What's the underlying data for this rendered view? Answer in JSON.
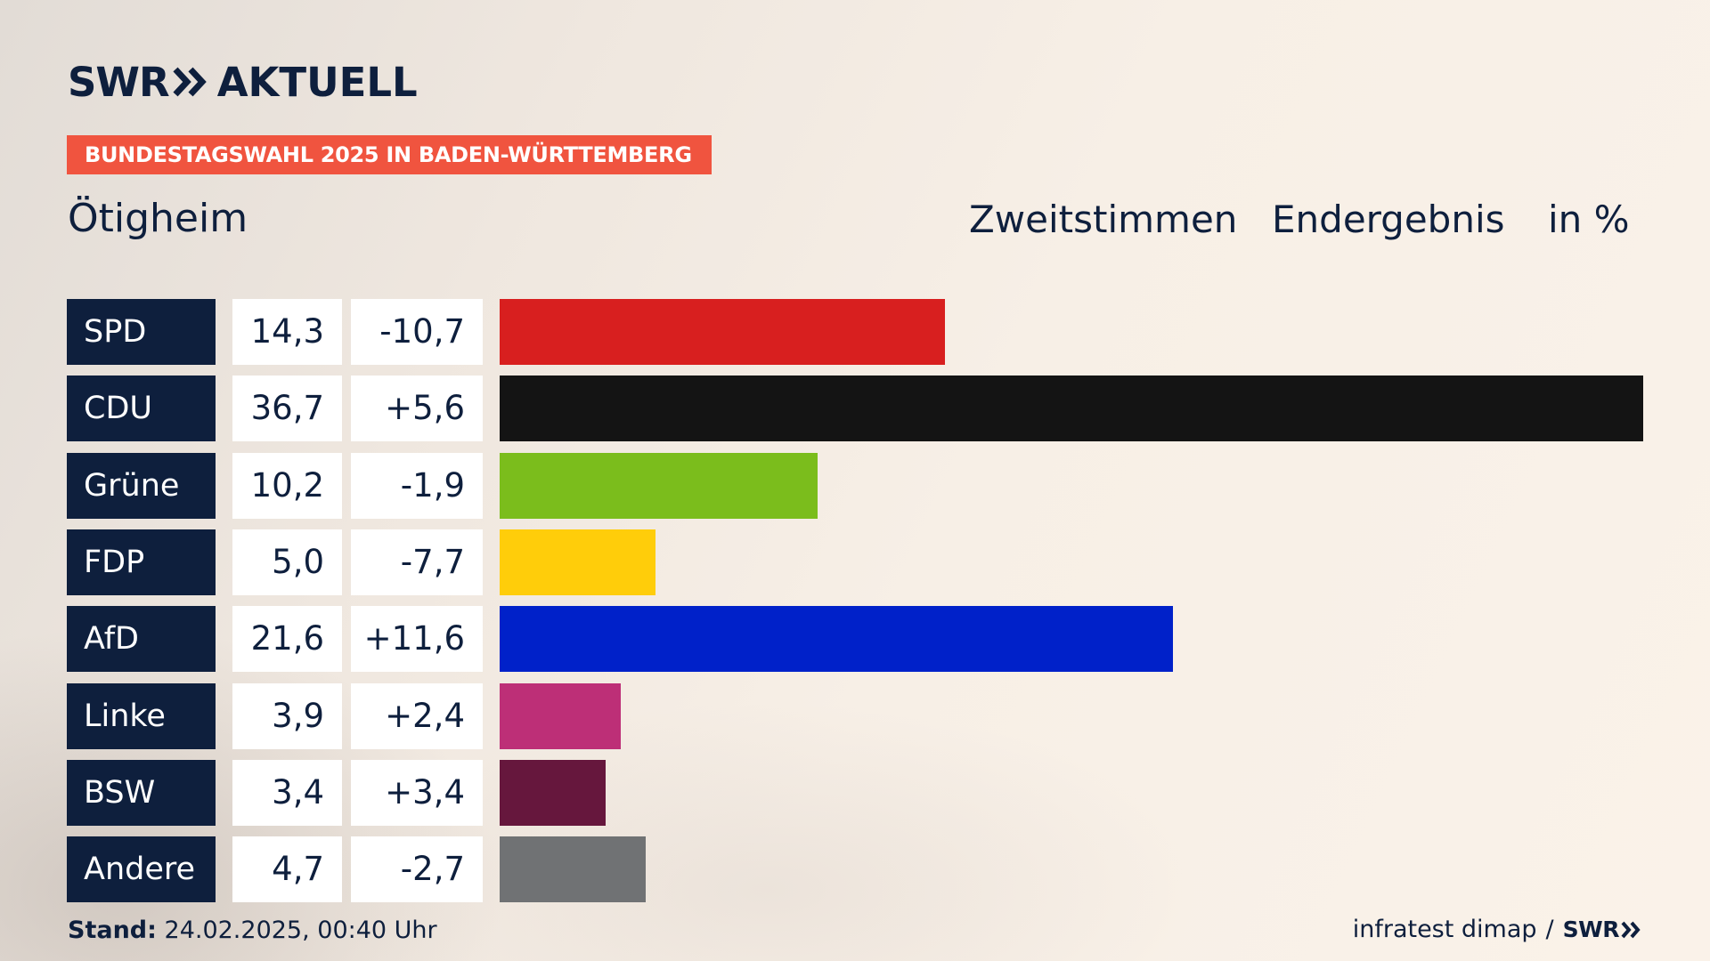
{
  "logo": {
    "text1": "SWR",
    "text2": "AKTUELL"
  },
  "banner": "BUNDESTAGSWAHL 2025 IN BADEN-WÜRTTEMBERG",
  "place": "Ötigheim",
  "headers": {
    "vote_type": "Zweitstimmen",
    "status": "Endergebnis",
    "unit": "in %"
  },
  "footer": {
    "stand_label": "Stand:",
    "stand_value": "24.02.2025, 00:40 Uhr",
    "source": "infratest dimap",
    "separator": "/",
    "source_logo": "SWR"
  },
  "colors": {
    "navy": "#0e1f3d",
    "banner": "#f0543f"
  },
  "chart_data": {
    "type": "bar",
    "title": "Zweitstimmen Endergebnis in %",
    "categories": [
      "SPD",
      "CDU",
      "Grüne",
      "FDP",
      "AfD",
      "Linke",
      "BSW",
      "Andere"
    ],
    "values": [
      14.3,
      36.7,
      10.2,
      5.0,
      21.6,
      3.9,
      3.4,
      4.7
    ],
    "labels": [
      "14,3",
      "36,7",
      "10,2",
      "5,0",
      "21,6",
      "3,9",
      "3,4",
      "4,7"
    ],
    "diffs": [
      "-10,7",
      "+5,6",
      "-1,9",
      "-7,7",
      "+11,6",
      "+2,4",
      "+3,4",
      "-2,7"
    ],
    "bar_colors": [
      "#d81f1f",
      "#141414",
      "#7bbd1c",
      "#ffcd0a",
      "#0021c9",
      "#bd2f77",
      "#66173d",
      "#707274"
    ],
    "xlabel": "",
    "ylabel": "in %",
    "xlim": [
      0,
      36.7
    ],
    "orientation": "horizontal"
  }
}
